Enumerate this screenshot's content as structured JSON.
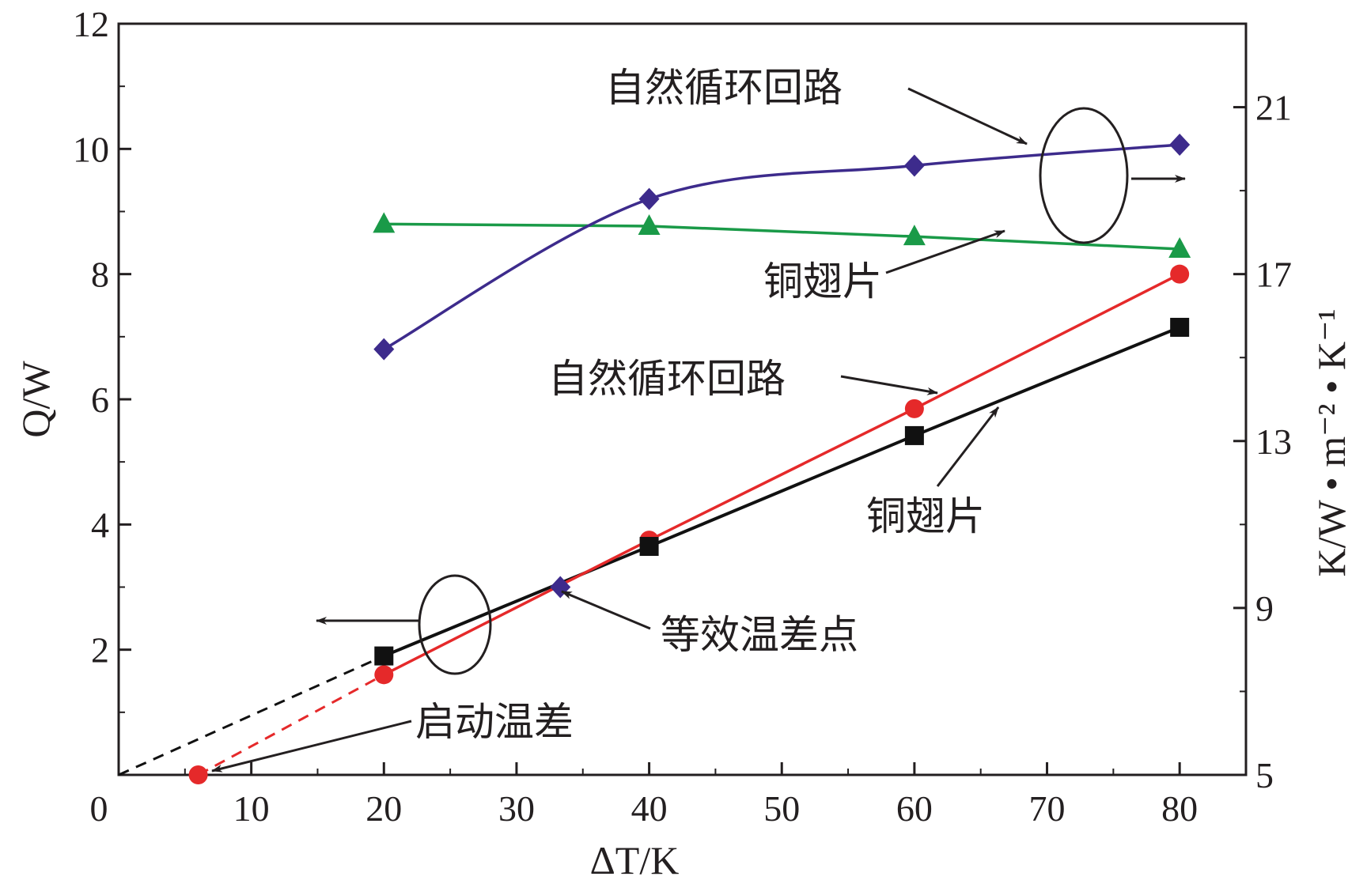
{
  "chart_data": {
    "type": "line",
    "x_axis": {
      "label": "ΔT/K",
      "range": [
        0,
        85
      ],
      "ticks": [
        10,
        20,
        30,
        40,
        50,
        60,
        70,
        80
      ],
      "minor_ticks": [
        5,
        15,
        25,
        35,
        45,
        55,
        65,
        75
      ]
    },
    "y_axis_left": {
      "label": "Q/W",
      "range": [
        0,
        12
      ],
      "ticks": [
        2,
        4,
        6,
        8,
        10,
        12
      ],
      "origin_label": "0"
    },
    "y_axis_right": {
      "label": "K/W • m⁻² • K⁻¹",
      "range": [
        5,
        23
      ],
      "ticks": [
        5,
        9,
        13,
        17,
        21
      ]
    },
    "grid": false,
    "series": [
      {
        "axis": "right",
        "color": "#3d2b8c",
        "marker": "diamond",
        "smooth": true,
        "x": [
          20,
          40,
          60,
          80
        ],
        "y": [
          15.2,
          18.8,
          19.6,
          20.1
        ]
      },
      {
        "axis": "right",
        "color": "#1a9a48",
        "marker": "triangle",
        "x": [
          20,
          40,
          60,
          80
        ],
        "y": [
          18.2,
          18.15,
          17.9,
          17.6
        ]
      },
      {
        "axis": "left",
        "color": "#e5292a",
        "marker": "circle",
        "x": [
          20,
          40,
          60,
          80
        ],
        "y": [
          1.6,
          3.75,
          5.85,
          8.0
        ],
        "extrapolated_from": [
          6,
          0
        ]
      },
      {
        "axis": "left",
        "color": "#111111",
        "marker": "square",
        "x": [
          20,
          40,
          60,
          80
        ],
        "y": [
          1.9,
          3.65,
          5.42,
          7.15
        ],
        "extrapolated_from": [
          0,
          0
        ]
      }
    ],
    "equivalent_point": {
      "x": 33.3,
      "y": 3.0
    },
    "startup_point": {
      "x": 6,
      "y": 0
    },
    "annotations": {
      "k_natural_loop": "自然循环回路",
      "k_copper_fin": "铜翅片",
      "q_natural_loop": "自然循环回路",
      "q_copper_fin": "铜翅片",
      "equivalent_point": "等效温差点",
      "startup_temp": "启动温差"
    }
  }
}
